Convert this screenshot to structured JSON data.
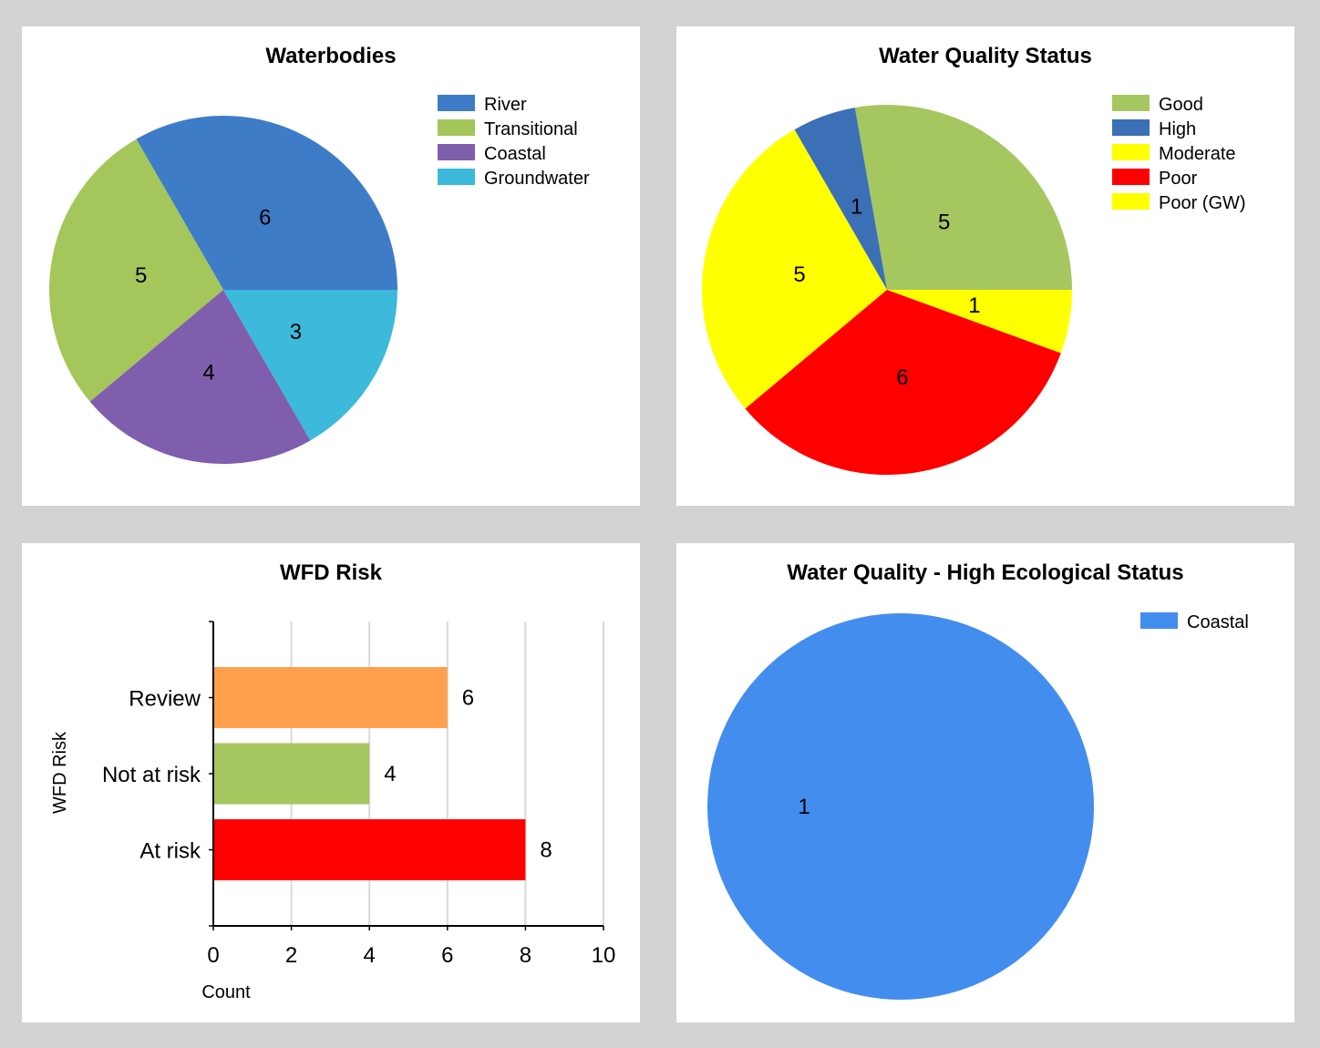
{
  "chart_data": [
    {
      "id": "waterbodies",
      "type": "pie",
      "title": "Waterbodies",
      "slices": [
        {
          "label": "River",
          "value": 6,
          "color": "#3e7cc8"
        },
        {
          "label": "Transitional",
          "value": 5,
          "color": "#a5c65b"
        },
        {
          "label": "Coastal",
          "value": 4,
          "color": "#7f5fad"
        },
        {
          "label": "Groundwater",
          "value": 3,
          "color": "#3cb9db"
        }
      ],
      "legend_position": "right"
    },
    {
      "id": "water-quality-status",
      "type": "pie",
      "title": "Water Quality Status",
      "slices": [
        {
          "label": "Good",
          "value": 5,
          "color": "#a6c660"
        },
        {
          "label": "High",
          "value": 1,
          "color": "#3b6fb6"
        },
        {
          "label": "Moderate",
          "value": 5,
          "color": "#ffff00"
        },
        {
          "label": "Poor",
          "value": 6,
          "color": "#ff0000"
        },
        {
          "label": "Poor (GW)",
          "value": 1,
          "color": "#ffff00"
        }
      ],
      "legend_position": "right"
    },
    {
      "id": "wfd-risk",
      "type": "bar",
      "orientation": "horizontal",
      "title": "WFD Risk",
      "xlabel": "Count",
      "ylabel": "WFD Risk",
      "xlim": [
        0,
        10
      ],
      "xticks": [
        0,
        2,
        4,
        6,
        8,
        10
      ],
      "grid": true,
      "categories": [
        "Review",
        "Not at risk",
        "At risk"
      ],
      "values": [
        6,
        4,
        8
      ],
      "colors": [
        "#ffa04d",
        "#a6c660",
        "#ff0000"
      ]
    },
    {
      "id": "high-ecological-status",
      "type": "pie",
      "title": "Water Quality - High Ecological Status",
      "slices": [
        {
          "label": "Coastal",
          "value": 1,
          "color": "#438def"
        }
      ],
      "legend_position": "right"
    }
  ]
}
